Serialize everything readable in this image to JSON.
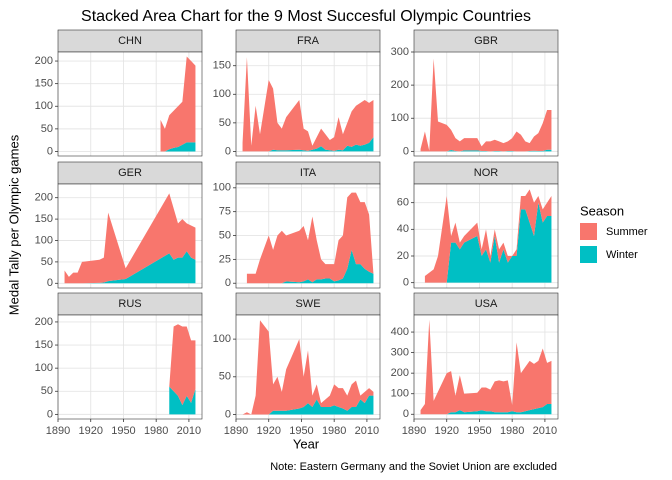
{
  "chart_data": {
    "type": "area",
    "stacked": true,
    "title": "Stacked Area Chart for the 9 Most Succesful Olympic Countries",
    "x_label": "Year",
    "y_label": "Medal Tally per Olympic games",
    "note": "Note: Eastern Germany and the Soviet Union are excluded",
    "legend_title": "Season",
    "grid": true,
    "xlim": [
      1890,
      2022
    ],
    "xticks": [
      1890,
      1920,
      1950,
      1980,
      2010
    ],
    "facets": [
      {
        "title": "CHN",
        "ylim": [
          -10,
          220
        ],
        "yticks": [
          0,
          50,
          100,
          150,
          200
        ],
        "x": [
          1984,
          1988,
          1992,
          1996,
          2000,
          2004,
          2008,
          2012,
          2016
        ],
        "series": [
          {
            "name": "Summer",
            "color": "#F8766D",
            "values": [
              70,
              50,
              75,
              82,
              90,
              95,
              190,
              180,
              170
            ]
          },
          {
            "name": "Winter",
            "color": "#00BFC4",
            "values": [
              0,
              0,
              5,
              8,
              10,
              15,
              20,
              20,
              20
            ]
          }
        ]
      },
      {
        "title": "FRA",
        "ylim": [
          -8,
          174
        ],
        "yticks": [
          0,
          50,
          100,
          150
        ],
        "x": [
          1896,
          1900,
          1904,
          1908,
          1912,
          1920,
          1924,
          1928,
          1932,
          1936,
          1948,
          1952,
          1956,
          1960,
          1964,
          1968,
          1972,
          1976,
          1980,
          1984,
          1988,
          1992,
          1996,
          2000,
          2004,
          2008,
          2012,
          2016
        ],
        "series": [
          {
            "name": "Summer",
            "color": "#F8766D",
            "values": [
              15,
              165,
              10,
              80,
              30,
              125,
              107,
              48,
              38,
              58,
              87,
              38,
              34,
              7,
              20,
              31,
              27,
              18,
              24,
              57,
              28,
              40,
              62,
              68,
              75,
              78,
              70,
              65
            ]
          },
          {
            "name": "Winter",
            "color": "#00BFC4",
            "values": [
              0,
              0,
              0,
              0,
              0,
              0,
              3,
              2,
              2,
              2,
              3,
              2,
              1,
              3,
              5,
              9,
              3,
              2,
              1,
              3,
              2,
              10,
              8,
              12,
              10,
              12,
              15,
              25
            ]
          }
        ]
      },
      {
        "title": "GBR",
        "ylim": [
          -14,
          300
        ],
        "yticks": [
          0,
          100,
          200,
          300
        ],
        "x": [
          1896,
          1900,
          1904,
          1908,
          1912,
          1920,
          1924,
          1928,
          1932,
          1936,
          1948,
          1952,
          1956,
          1960,
          1964,
          1968,
          1972,
          1976,
          1980,
          1984,
          1988,
          1992,
          1996,
          2000,
          2004,
          2008,
          2012,
          2016
        ],
        "series": [
          {
            "name": "Summer",
            "color": "#F8766D",
            "values": [
              7,
              60,
              2,
              280,
              90,
              80,
              61,
              39,
              30,
              37,
              37,
              14,
              29,
              30,
              34,
              29,
              25,
              29,
              39,
              60,
              50,
              30,
              24,
              43,
              54,
              84,
              120,
              120
            ]
          },
          {
            "name": "Winter",
            "color": "#00BFC4",
            "values": [
              0,
              0,
              0,
              0,
              0,
              0,
              4,
              1,
              0,
              3,
              3,
              1,
              1,
              0,
              1,
              1,
              0,
              1,
              1,
              0,
              0,
              0,
              1,
              2,
              1,
              1,
              5,
              5
            ]
          }
        ]
      },
      {
        "title": "GER",
        "ylim": [
          -11,
          232
        ],
        "yticks": [
          0,
          50,
          100,
          150,
          200
        ],
        "x": [
          1896,
          1900,
          1904,
          1908,
          1912,
          1928,
          1932,
          1936,
          1952,
          1992,
          1996,
          2000,
          2004,
          2008,
          2012,
          2016
        ],
        "series": [
          {
            "name": "Summer",
            "color": "#F8766D",
            "values": [
              30,
              15,
              25,
              25,
              50,
              54,
              58,
              160,
              25,
              140,
              120,
              80,
              90,
              65,
              75,
              75
            ]
          },
          {
            "name": "Winter",
            "color": "#00BFC4",
            "values": [
              0,
              0,
              0,
              0,
              0,
              1,
              2,
              5,
              10,
              70,
              55,
              60,
              60,
              75,
              60,
              55
            ]
          }
        ]
      },
      {
        "title": "ITA",
        "ylim": [
          -5,
          104
        ],
        "yticks": [
          0,
          25,
          50,
          75,
          100
        ],
        "x": [
          1900,
          1908,
          1912,
          1920,
          1924,
          1928,
          1932,
          1936,
          1948,
          1952,
          1956,
          1960,
          1964,
          1968,
          1972,
          1976,
          1980,
          1984,
          1988,
          1992,
          1996,
          2000,
          2004,
          2008,
          2012,
          2016
        ],
        "series": [
          {
            "name": "Summer",
            "color": "#F8766D",
            "values": [
              10,
              10,
              25,
              50,
              35,
              50,
              55,
              48,
              54,
              58,
              41,
              69,
              41,
              21,
              15,
              15,
              18,
              42,
              45,
              75,
              60,
              75,
              65,
              70,
              60,
              0
            ]
          },
          {
            "name": "Winter",
            "color": "#00BFC4",
            "values": [
              0,
              0,
              0,
              0,
              0,
              0,
              0,
              2,
              1,
              2,
              4,
              1,
              4,
              4,
              5,
              5,
              2,
              3,
              5,
              15,
              35,
              20,
              20,
              15,
              12,
              10
            ]
          }
        ]
      },
      {
        "title": "NOR",
        "ylim": [
          -4,
          74
        ],
        "yticks": [
          0,
          20,
          40,
          60
        ],
        "x": [
          1900,
          1908,
          1912,
          1920,
          1924,
          1928,
          1932,
          1936,
          1948,
          1952,
          1956,
          1960,
          1964,
          1968,
          1972,
          1976,
          1980,
          1984,
          1988,
          1992,
          1996,
          2000,
          2004,
          2008,
          2012,
          2016
        ],
        "series": [
          {
            "name": "Summer",
            "color": "#F8766D",
            "values": [
              5,
              10,
              20,
              65,
              5,
              15,
              5,
              5,
              10,
              5,
              15,
              5,
              5,
              10,
              5,
              5,
              0,
              5,
              10,
              10,
              25,
              25,
              5,
              10,
              10,
              15
            ]
          },
          {
            "name": "Winter",
            "color": "#00BFC4",
            "values": [
              0,
              0,
              0,
              0,
              30,
              30,
              25,
              30,
              35,
              20,
              25,
              15,
              35,
              15,
              25,
              15,
              20,
              20,
              55,
              55,
              45,
              35,
              60,
              45,
              50,
              50
            ]
          }
        ]
      },
      {
        "title": "RUS",
        "ylim": [
          -10,
          215
        ],
        "yticks": [
          0,
          50,
          100,
          150,
          200
        ],
        "x": [
          1992,
          1996,
          2000,
          2004,
          2008,
          2012,
          2016
        ],
        "series": [
          {
            "name": "Summer",
            "color": "#F8766D",
            "values": [
              0,
              140,
              155,
              170,
              150,
              135,
              105
            ]
          },
          {
            "name": "Winter",
            "color": "#00BFC4",
            "values": [
              60,
              50,
              40,
              20,
              40,
              25,
              55
            ]
          }
        ]
      },
      {
        "title": "SWE",
        "ylim": [
          -6,
          132
        ],
        "yticks": [
          0,
          50,
          100
        ],
        "x": [
          1896,
          1900,
          1904,
          1908,
          1912,
          1920,
          1924,
          1928,
          1932,
          1936,
          1948,
          1952,
          1956,
          1960,
          1964,
          1968,
          1972,
          1976,
          1980,
          1984,
          1988,
          1992,
          1996,
          2000,
          2004,
          2008,
          2012,
          2016
        ],
        "series": [
          {
            "name": "Summer",
            "color": "#F8766D",
            "values": [
              0,
              3,
              0,
              25,
              125,
              110,
              35,
              45,
              25,
              55,
              92,
              40,
              70,
              15,
              20,
              5,
              10,
              15,
              28,
              25,
              27,
              20,
              30,
              35,
              5,
              15,
              10,
              5
            ]
          },
          {
            "name": "Winter",
            "color": "#00BFC4",
            "values": [
              0,
              0,
              0,
              0,
              0,
              0,
              5,
              5,
              5,
              5,
              8,
              10,
              15,
              10,
              20,
              10,
              10,
              10,
              12,
              10,
              8,
              5,
              10,
              10,
              20,
              15,
              25,
              25
            ]
          }
        ]
      },
      {
        "title": "USA",
        "ylim": [
          -23,
          483
        ],
        "yticks": [
          0,
          100,
          200,
          300,
          400
        ],
        "x": [
          1896,
          1900,
          1904,
          1908,
          1912,
          1920,
          1924,
          1928,
          1932,
          1936,
          1948,
          1952,
          1956,
          1960,
          1964,
          1968,
          1972,
          1976,
          1980,
          1984,
          1988,
          1992,
          1996,
          2000,
          2004,
          2008,
          2012,
          2016
        ],
        "series": [
          {
            "name": "Summer",
            "color": "#F8766D",
            "values": [
              20,
              50,
              460,
              65,
              110,
              200,
              200,
              80,
              170,
              90,
              90,
              110,
              115,
              105,
              150,
              155,
              150,
              155,
              30,
              340,
              190,
              215,
              240,
              220,
              230,
              285,
              200,
              210
            ]
          },
          {
            "name": "Winter",
            "color": "#00BFC4",
            "values": [
              0,
              0,
              0,
              0,
              0,
              0,
              10,
              10,
              20,
              10,
              15,
              20,
              15,
              15,
              10,
              10,
              10,
              10,
              15,
              10,
              10,
              15,
              20,
              25,
              30,
              35,
              50,
              50
            ]
          }
        ]
      }
    ]
  }
}
